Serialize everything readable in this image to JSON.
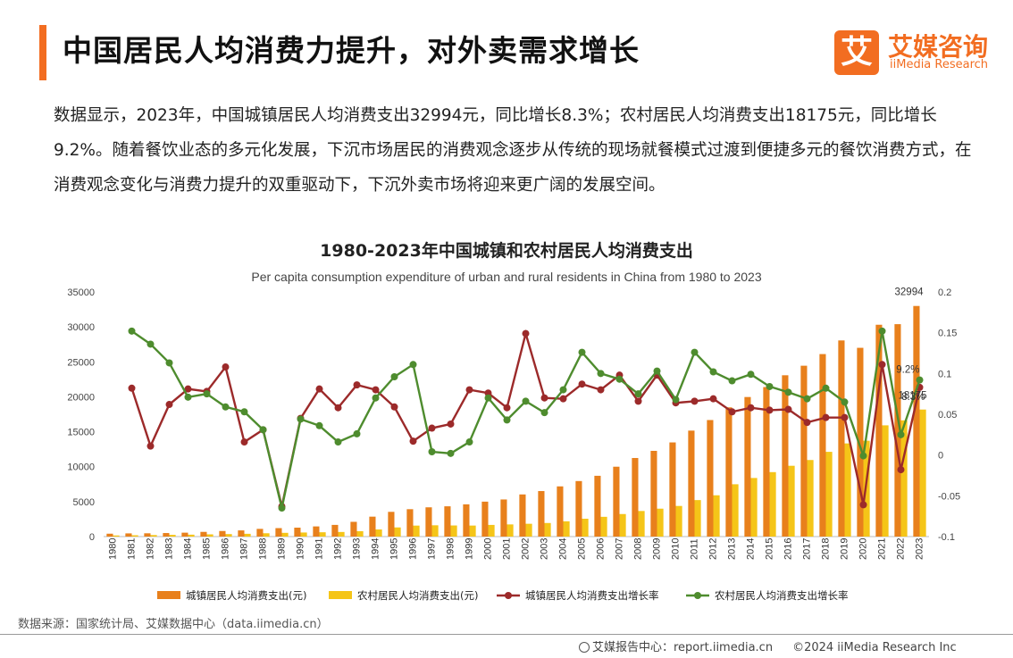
{
  "header": {
    "title": "中国居民人均消费力提升，对外卖需求增长",
    "logo_mark": "艾",
    "logo_cn": "艾媒咨询",
    "logo_en": "iiMedia Research"
  },
  "intro": "数据显示，2023年，中国城镇居民人均消费支出32994元，同比增长8.3%；农村居民人均消费支出18175元，同比增长9.2%。随着餐饮业态的多元化发展，下沉市场居民的消费观念逐步从传统的现场就餐模式过渡到便捷多元的餐饮消费方式，在消费观念变化与消费力提升的双重驱动下，下沉外卖市场将迎来更广阔的发展空间。",
  "chart_data": {
    "type": "bar",
    "title": "1980-2023年中国城镇和农村居民人均消费支出",
    "subtitle": "Per capita consumption expenditure of urban and rural residents in China from 1980 to 2023",
    "categories": [
      "1980",
      "1981",
      "1982",
      "1983",
      "1984",
      "1985",
      "1986",
      "1987",
      "1988",
      "1989",
      "1990",
      "1991",
      "1992",
      "1993",
      "1994",
      "1995",
      "1996",
      "1997",
      "1998",
      "1999",
      "2000",
      "2001",
      "2002",
      "2003",
      "2004",
      "2005",
      "2006",
      "2007",
      "2008",
      "2009",
      "2010",
      "2011",
      "2012",
      "2013",
      "2014",
      "2015",
      "2016",
      "2017",
      "2018",
      "2019",
      "2020",
      "2021",
      "2022",
      "2023"
    ],
    "y_left": {
      "ylim": [
        0,
        35000
      ],
      "ticks": [
        "0",
        "5000",
        "10000",
        "15000",
        "20000",
        "25000",
        "30000",
        "35000"
      ]
    },
    "y_right": {
      "ylim": [
        -0.1,
        0.2
      ],
      "ticks": [
        "-0.1",
        "-0.05",
        "0",
        "0.05",
        "0.1",
        "0.15",
        "0.2"
      ]
    },
    "series": [
      {
        "name": "城镇居民人均消费支出(元)",
        "kind": "bar",
        "axis": "left",
        "color": "#e8801c",
        "values": [
          412,
          457,
          471,
          506,
          559,
          673,
          799,
          884,
          1104,
          1211,
          1279,
          1454,
          1672,
          2111,
          2851,
          3538,
          3919,
          4186,
          4332,
          4616,
          4998,
          5309,
          6030,
          6511,
          7182,
          7943,
          8697,
          9997,
          11243,
          12265,
          13471,
          15161,
          16674,
          18488,
          19968,
          21392,
          23079,
          24445,
          26112,
          28063,
          27007,
          30307,
          30391,
          32994
        ]
      },
      {
        "name": "农村居民人均消费支出(元)",
        "kind": "bar",
        "axis": "left",
        "color": "#f5c518",
        "values": [
          162,
          191,
          220,
          248,
          274,
          317,
          357,
          398,
          477,
          535,
          585,
          620,
          659,
          770,
          1017,
          1310,
          1572,
          1617,
          1590,
          1577,
          1670,
          1741,
          1834,
          1943,
          2185,
          2555,
          2829,
          3224,
          3661,
          3993,
          4382,
          5221,
          5908,
          7485,
          8383,
          9223,
          10130,
          10955,
          12124,
          13328,
          13713,
          15916,
          16632,
          18175
        ]
      },
      {
        "name": "城镇居民人均消费支出增长率",
        "kind": "line",
        "axis": "right",
        "color": "#9c2a2a",
        "values": [
          null,
          0.082,
          0.011,
          0.062,
          0.081,
          0.078,
          0.108,
          0.016,
          0.031,
          -0.063,
          0.045,
          0.081,
          0.058,
          0.086,
          0.08,
          0.059,
          0.017,
          0.033,
          0.038,
          0.08,
          0.076,
          0.058,
          0.149,
          0.07,
          0.069,
          0.087,
          0.08,
          0.098,
          0.066,
          0.098,
          0.064,
          0.066,
          0.069,
          0.053,
          0.058,
          0.055,
          0.056,
          0.04,
          0.046,
          0.046,
          -0.061,
          0.111,
          -0.018,
          0.083
        ]
      },
      {
        "name": "农村居民人均消费支出增长率",
        "kind": "line",
        "axis": "right",
        "color": "#4e8c2e",
        "values": [
          null,
          0.152,
          0.136,
          0.113,
          0.071,
          0.075,
          0.059,
          0.053,
          0.031,
          -0.065,
          0.044,
          0.036,
          0.016,
          0.026,
          0.07,
          0.096,
          0.111,
          0.004,
          0.002,
          0.016,
          0.07,
          0.043,
          0.066,
          0.052,
          0.08,
          0.126,
          0.1,
          0.093,
          0.075,
          0.103,
          0.068,
          0.126,
          0.102,
          0.091,
          0.099,
          0.084,
          0.077,
          0.069,
          0.082,
          0.065,
          -0.001,
          0.152,
          0.025,
          0.092
        ]
      }
    ],
    "annotations": [
      {
        "text": "32994",
        "series": 0,
        "index": 43
      },
      {
        "text": "18175",
        "series": 1,
        "index": 43
      },
      {
        "text": "9.2%",
        "series": 3,
        "index": 43
      },
      {
        "text": "8.3%",
        "series": 2,
        "index": 43
      }
    ],
    "legend_position": "bottom"
  },
  "source": "数据来源：国家统计局、艾媒数据中心（data.iimedia.cn）",
  "footer": {
    "report_center": "艾媒报告中心：report.iimedia.cn",
    "copyright": "©2024  iiMedia Research  Inc"
  }
}
